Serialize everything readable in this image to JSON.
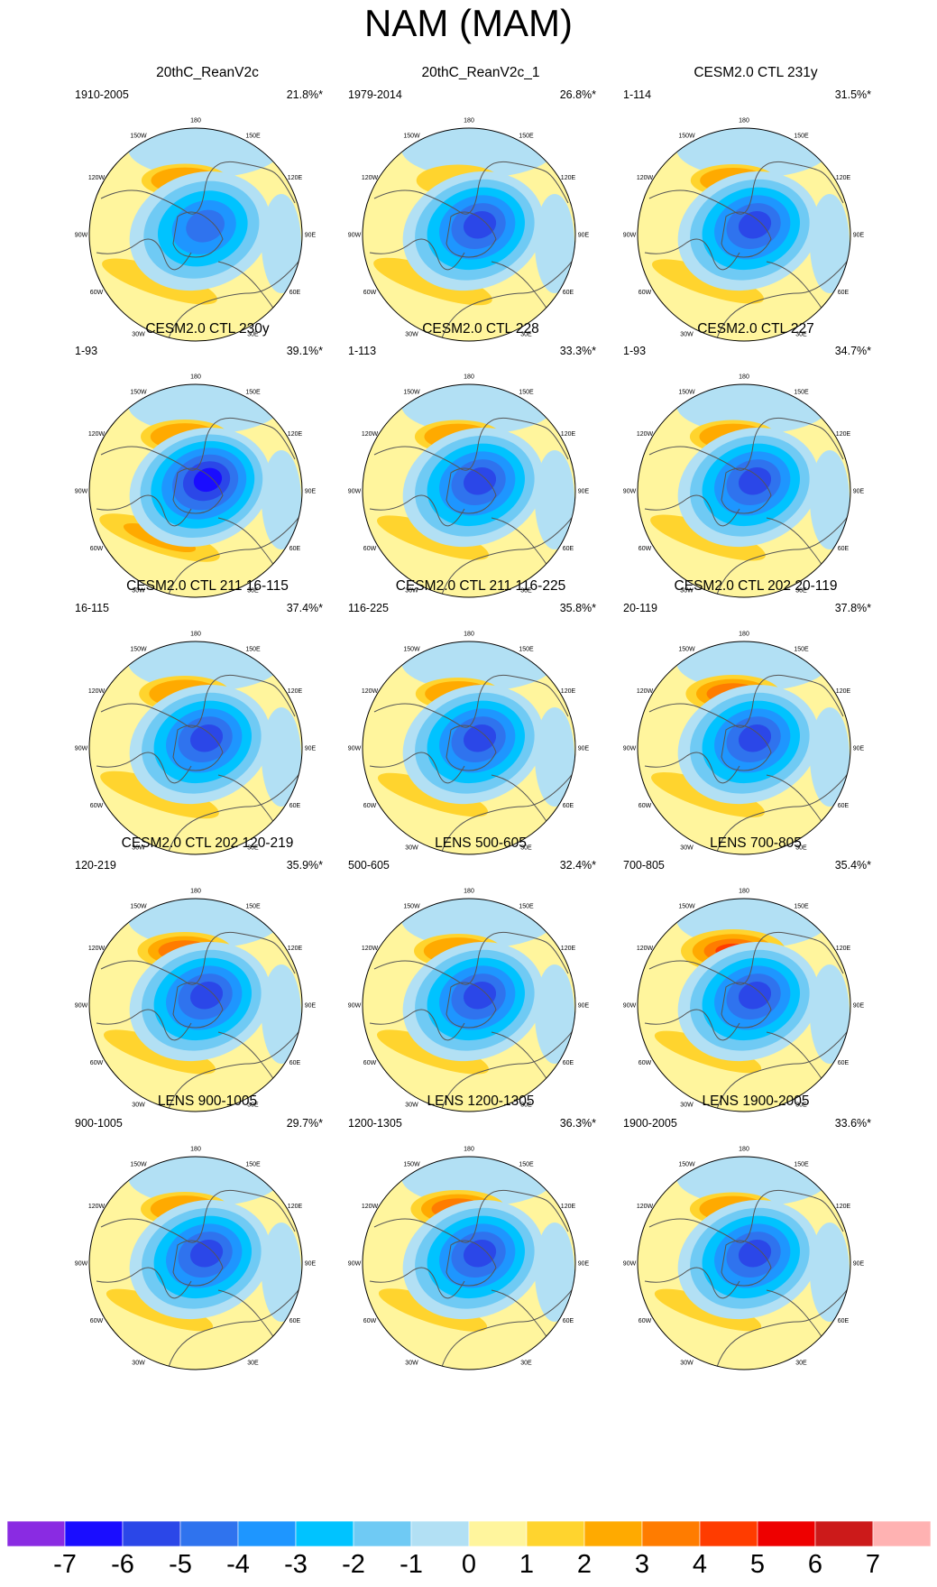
{
  "chart_data": {
    "type": "map-panels",
    "title": "NAM (MAM)",
    "projection": "north polar stereographic",
    "lon_labels": [
      "180",
      "150E",
      "120E",
      "90E",
      "60E",
      "30E",
      "0",
      "30W",
      "60W",
      "90W",
      "120W",
      "150W"
    ],
    "panels": [
      {
        "title": "20thC_ReanV2c",
        "range": "1910-2005",
        "variance": "21.8%*",
        "strength": 0.55,
        "pac": 0.45,
        "atl": 0.6
      },
      {
        "title": "20thC_ReanV2c_1",
        "range": "1979-2014",
        "variance": "26.8%*",
        "strength": 0.65,
        "pac": 0.35,
        "atl": 0.7
      },
      {
        "title": "CESM2.0 CTL 231y",
        "range": "1-114",
        "variance": "31.5%*",
        "strength": 0.7,
        "pac": 0.4,
        "atl": 0.5
      },
      {
        "title": "CESM2.0 CTL 230y",
        "range": "1-93",
        "variance": "39.1%*",
        "strength": 0.9,
        "pac": 0.5,
        "atl": 0.75
      },
      {
        "title": "CESM2.0 CTL 228",
        "range": "1-113",
        "variance": "33.3%*",
        "strength": 0.8,
        "pac": 0.45,
        "atl": 0.5
      },
      {
        "title": "CESM2.0 CTL 227",
        "range": "1-93",
        "variance": "34.7%*",
        "strength": 0.8,
        "pac": 0.45,
        "atl": 0.6
      },
      {
        "title": "CESM2.0 CTL 211 16-115",
        "range": "16-115",
        "variance": "37.4%*",
        "strength": 0.85,
        "pac": 0.6,
        "atl": 0.7
      },
      {
        "title": "CESM2.0 CTL 211 116-225",
        "range": "116-225",
        "variance": "35.8%*",
        "strength": 0.8,
        "pac": 0.4,
        "atl": 0.45
      },
      {
        "title": "CESM2.0 CTL 202 20-119",
        "range": "20-119",
        "variance": "37.8%*",
        "strength": 0.85,
        "pac": 0.7,
        "atl": 0.55
      },
      {
        "title": "CESM2.0 CTL 202 120-219",
        "range": "120-219",
        "variance": "35.9%*",
        "strength": 0.85,
        "pac": 0.7,
        "atl": 0.5
      },
      {
        "title": "LENS 500-605",
        "range": "500-605",
        "variance": "32.4%*",
        "strength": 0.75,
        "pac": 0.5,
        "atl": 0.5
      },
      {
        "title": "LENS 700-805",
        "range": "700-805",
        "variance": "35.4%*",
        "strength": 0.75,
        "pac": 1.0,
        "atl": 0.35
      },
      {
        "title": "LENS 900-1005",
        "range": "900-1005",
        "variance": "29.7%*",
        "strength": 0.7,
        "pac": 0.5,
        "atl": 0.35
      },
      {
        "title": "LENS 1200-1305",
        "range": "1200-1305",
        "variance": "36.3%*",
        "strength": 0.8,
        "pac": 0.7,
        "atl": 0.4
      },
      {
        "title": "LENS 1900-2005",
        "range": "1900-2005",
        "variance": "33.6%*",
        "strength": 0.7,
        "pac": 0.45,
        "atl": 0.35
      }
    ],
    "colorbar": {
      "colors": [
        "#8a2be2",
        "#1a0dff",
        "#2b47e8",
        "#2f73ee",
        "#1e96ff",
        "#00c3ff",
        "#6fcaf4",
        "#b2e0f4",
        "#fff59d",
        "#ffd42e",
        "#ffaa00",
        "#ff7c00",
        "#ff3c00",
        "#ee0000",
        "#cc1a1a",
        "#ffb2b2"
      ],
      "labels": [
        "-7",
        "-6",
        "-5",
        "-4",
        "-3",
        "-2",
        "-1",
        "0",
        "1",
        "2",
        "3",
        "4",
        "5",
        "6",
        "7"
      ]
    }
  }
}
